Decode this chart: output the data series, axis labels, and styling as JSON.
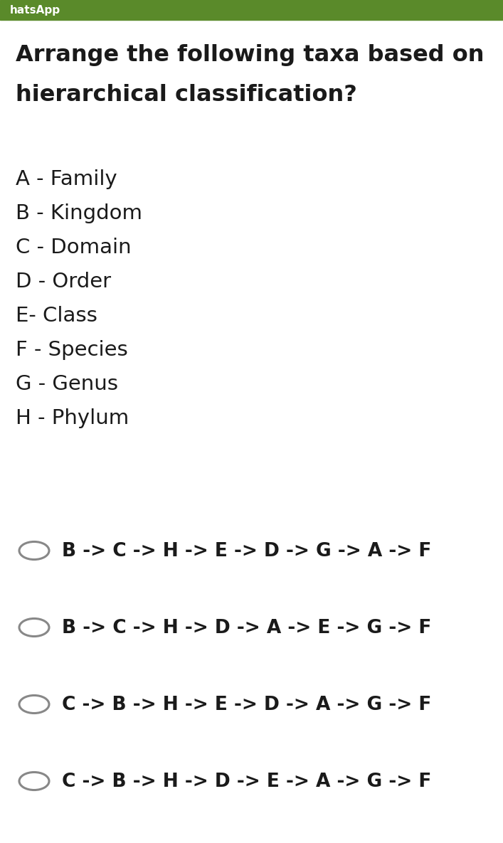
{
  "bg_color": "#ffffff",
  "header_color": "#5a8a2a",
  "header_text": "hatsApp",
  "title_line1": "Arrange the following taxa based on",
  "title_line2": "hierarchical classification?",
  "title_fontsize": 23,
  "title_color": "#1a1a1a",
  "items": [
    "A - Family",
    "B - Kingdom",
    "C - Domain",
    "D - Order",
    "E- Class",
    "F - Species",
    "G - Genus",
    "H - Phylum"
  ],
  "items_fontsize": 21,
  "items_color": "#1a1a1a",
  "options": [
    "B -> C -> H -> E -> D -> G -> A -> F",
    "B -> C -> H -> D -> A -> E -> G -> F",
    "C -> B -> H -> E -> D -> A -> G -> F",
    "C -> B -> H -> D -> E -> A -> G -> F"
  ],
  "options_fontsize": 19,
  "options_color": "#1a1a1a",
  "circle_color": "#888888",
  "circle_lw": 2.2
}
